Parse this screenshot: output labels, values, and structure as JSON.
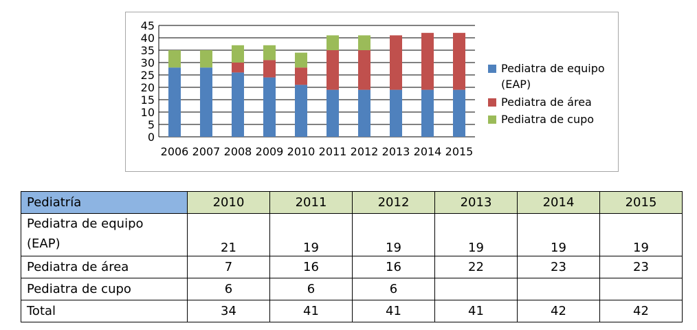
{
  "chart_data": {
    "type": "bar",
    "stacked": true,
    "categories": [
      "2006",
      "2007",
      "2008",
      "2009",
      "2010",
      "2011",
      "2012",
      "2013",
      "2014",
      "2015"
    ],
    "series": [
      {
        "name": "Pediatra de equipo (EAP)",
        "values": [
          28,
          28,
          26,
          24,
          21,
          19,
          19,
          19,
          19,
          19
        ],
        "color": "#4f81bd"
      },
      {
        "name": "Pediatra de área",
        "values": [
          0,
          0,
          4,
          7,
          7,
          16,
          16,
          22,
          23,
          23
        ],
        "color": "#c0504d"
      },
      {
        "name": "Pediatra de cupo",
        "values": [
          7,
          7,
          7,
          6,
          6,
          6,
          6,
          0,
          0,
          0
        ],
        "color": "#9bbb59"
      }
    ],
    "yticks": [
      "0",
      "5",
      "10",
      "15",
      "20",
      "25",
      "30",
      "35",
      "40",
      "45"
    ],
    "ylim": [
      0,
      45
    ],
    "grid": true,
    "legend_position": "right",
    "legend": [
      {
        "lines": [
          "Pediatra de equipo",
          "(EAP)"
        ],
        "color": "#4f81bd"
      },
      {
        "lines": [
          "Pediatra de área"
        ],
        "color": "#c0504d"
      },
      {
        "lines": [
          "Pediatra de cupo"
        ],
        "color": "#9bbb59"
      }
    ]
  },
  "table": {
    "header": [
      "Pediatría",
      "2010",
      "2011",
      "2012",
      "2013",
      "2014",
      "2015"
    ],
    "rows": [
      {
        "label_lines": [
          "Pediatra de equipo",
          "(EAP)"
        ],
        "cells": [
          "21",
          "19",
          "19",
          "19",
          "19",
          "19"
        ]
      },
      {
        "label": "Pediatra de área",
        "cells": [
          "7",
          "16",
          "16",
          "22",
          "23",
          "23"
        ]
      },
      {
        "label": "Pediatra de cupo",
        "cells": [
          "6",
          "6",
          "6",
          "",
          "",
          ""
        ]
      },
      {
        "label": "Total",
        "cells": [
          "34",
          "41",
          "41",
          "41",
          "42",
          "42"
        ]
      }
    ]
  }
}
